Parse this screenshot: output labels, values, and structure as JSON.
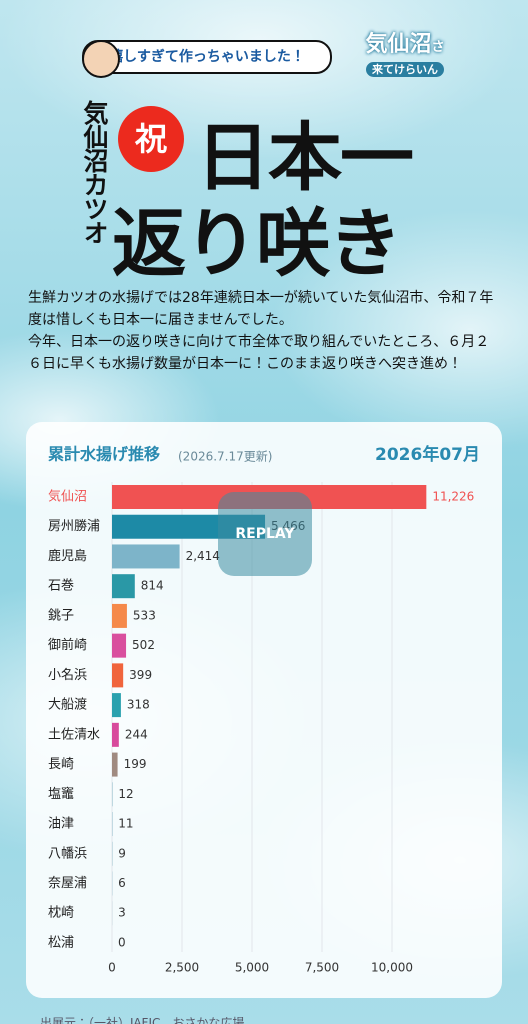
{
  "header": {
    "bubble": "嬉しすぎて作っちゃいました！",
    "logo_main": "気仙沼",
    "logo_small": "さ",
    "logo_sub": "来てけらいん",
    "title_vertical": "気仙沼カツオ",
    "badge": "祝",
    "title_line1": "日本一",
    "title_line2": "返り咲き"
  },
  "description": [
    "生鮮カツオの水揚げでは28年連続日本一が続いていた気仙沼市、令和７年度は惜しくも日本一に届きませんでした。",
    "今年、日本一の返り咲きに向けて市全体で取り組んでいたところ、６月２６日に早くも水揚げ数量が日本一に！このまま返り咲きへ突き進め！"
  ],
  "controls": {
    "replay": "REPLAY"
  },
  "footer": {
    "source": "出展元：（一社）JAFIC　おさかな広場"
  },
  "chart_data": {
    "type": "hbar",
    "title": "累計水揚げ推移",
    "subtitle": "(2026.7.17更新)",
    "period": "2026年07月",
    "categories": [
      "気仙沼",
      "房州勝浦",
      "鹿児島",
      "石巻",
      "銚子",
      "御前崎",
      "小名浜",
      "大船渡",
      "土佐清水",
      "長崎",
      "塩竈",
      "油津",
      "八幡浜",
      "奈屋浦",
      "枕崎",
      "松浦"
    ],
    "values": [
      11226,
      5466,
      2414,
      814,
      533,
      502,
      399,
      318,
      244,
      199,
      12,
      11,
      9,
      6,
      3,
      0
    ],
    "value_labels": [
      "11,226",
      "5,466",
      "2,414",
      "814",
      "533",
      "502",
      "399",
      "318",
      "244",
      "199",
      "12",
      "11",
      "9",
      "6",
      "3",
      "0"
    ],
    "colors": [
      "#f05252",
      "#1d8aa6",
      "#7db4c9",
      "#2a98a6",
      "#f5894a",
      "#d94f9e",
      "#f0643c",
      "#2aa1ae",
      "#d84a9c",
      "#a08a80",
      "#5a9bb0",
      "#5a9bb0",
      "#5a9bb0",
      "#5a9bb0",
      "#5a9bb0",
      "#5a9bb0"
    ],
    "highlight_color": "#f05252",
    "xlim": [
      0,
      11500
    ],
    "xticks": [
      0,
      {
        "value": 2500,
        "label": "2,500"
      },
      {
        "value": 5000,
        "label": "5,000"
      },
      {
        "value": 7500,
        "label": "7,500"
      },
      {
        "value": 10000,
        "label": "10,000"
      }
    ],
    "grid": true
  }
}
